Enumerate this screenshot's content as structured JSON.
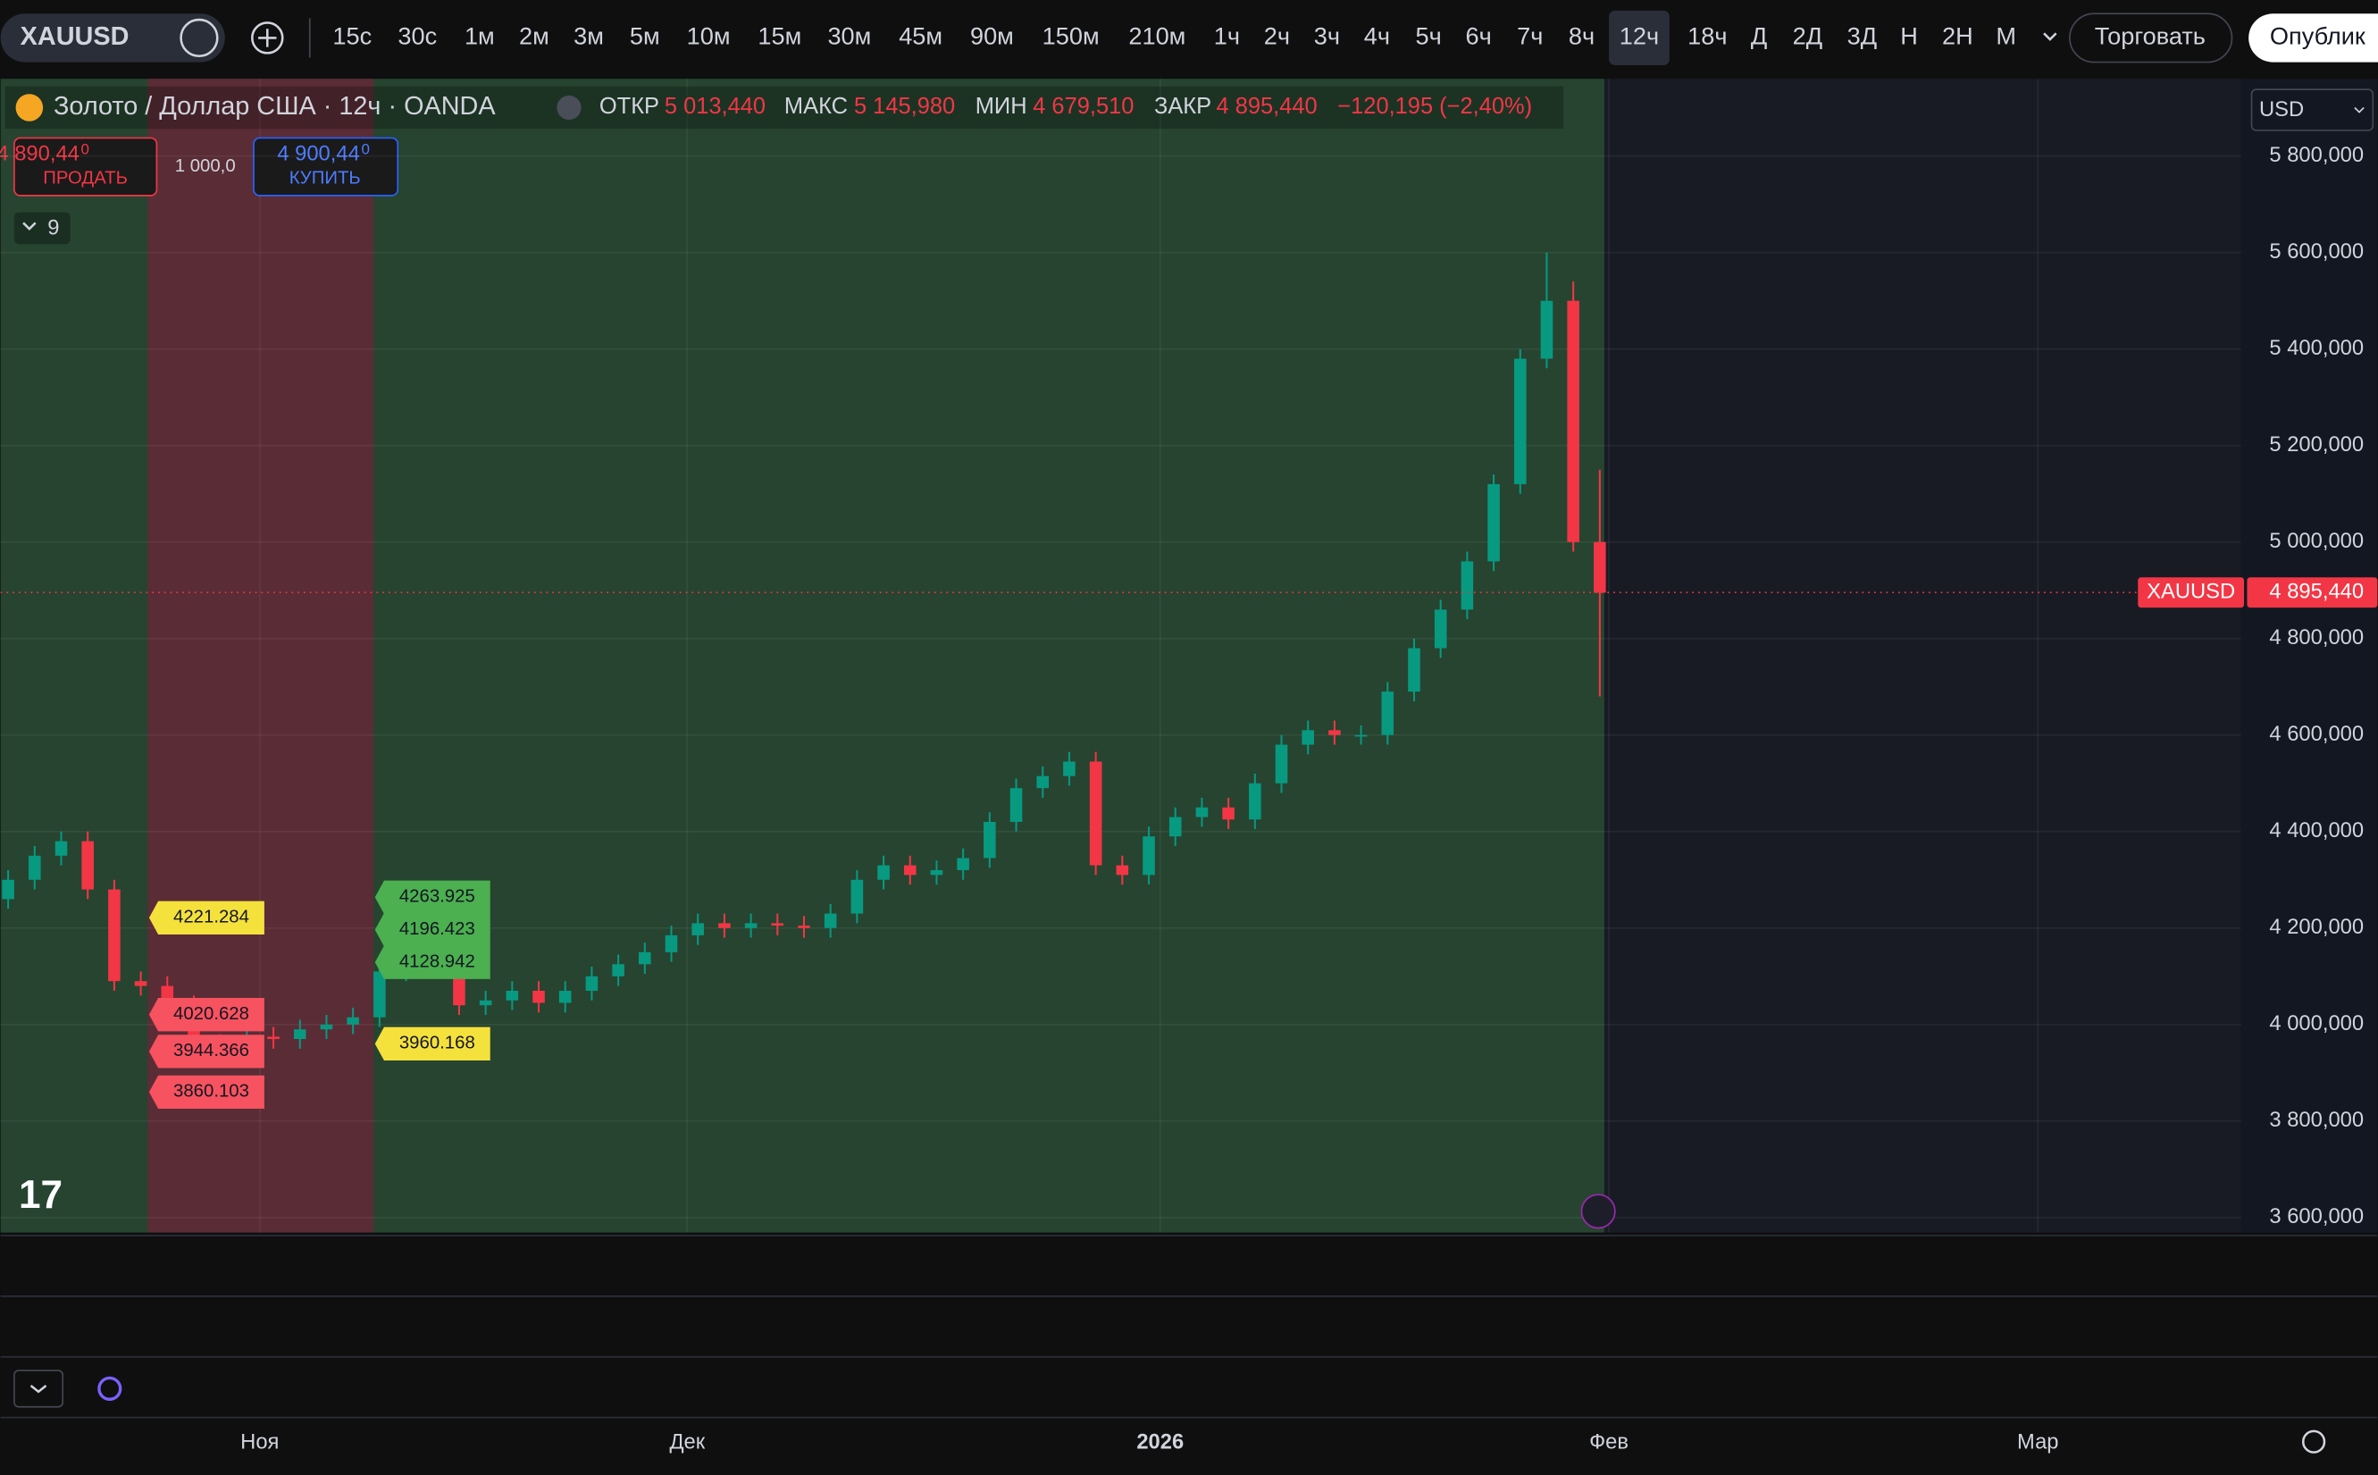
{
  "toolbar": {
    "symbol": "XAUUSD",
    "intervals": [
      "15с",
      "30с",
      "1м",
      "2м",
      "3м",
      "5м",
      "10м",
      "15м",
      "30м",
      "45м",
      "90м",
      "150м",
      "210м",
      "1ч",
      "2ч",
      "3ч",
      "4ч",
      "5ч",
      "6ч",
      "7ч",
      "8ч",
      "12ч",
      "18ч",
      "Д",
      "2Д",
      "3Д",
      "Н",
      "2Н",
      "М"
    ],
    "active_interval": "12ч",
    "trade_button": "Торговать",
    "publish_button": "Опублик"
  },
  "legend": {
    "title": "Золото / Доллар США · 12ч · OANDA",
    "open_label": "ОТКР",
    "open": "5 013,440",
    "high_label": "МАКС",
    "high": "5 145,980",
    "low_label": "МИН",
    "low": "4 679,510",
    "close_label": "ЗАКР",
    "close": "4 895,440",
    "change": "−120,195 (−2,40%)"
  },
  "trade": {
    "sell_price": "4 890,44",
    "sell_price_sup": "0",
    "sell_label": "ПРОДАТЬ",
    "quantity": "1 000,0",
    "buy_price": "4 900,44",
    "buy_price_sup": "0",
    "buy_label": "КУПИТЬ"
  },
  "indicators_count": "9",
  "currency": "USD",
  "chart_data": {
    "type": "candlestick",
    "open": [
      4260,
      4300,
      4350,
      4380,
      4280,
      4090,
      4080,
      4040,
      3960,
      3950,
      3975,
      3970,
      3990,
      4000,
      4015,
      4110,
      4140,
      4130,
      4040,
      4050,
      4070,
      4045,
      4070,
      4100,
      4125,
      4150,
      4185,
      4210,
      4200,
      4210,
      4205,
      4200,
      4230,
      4300,
      4330,
      4310,
      4320,
      4345,
      4420,
      4490,
      4515,
      4545,
      4330,
      4310,
      4390,
      4430,
      4450,
      4425,
      4500,
      4580,
      4610,
      4600,
      4600,
      4690,
      4780,
      4860,
      4960,
      5120,
      5380,
      5500,
      5000
    ],
    "high": [
      4320,
      4370,
      4400,
      4400,
      4300,
      4110,
      4100,
      4060,
      3980,
      3995,
      3995,
      4010,
      4020,
      4035,
      4130,
      4160,
      4160,
      4150,
      4070,
      4090,
      4090,
      4090,
      4120,
      4145,
      4170,
      4205,
      4230,
      4230,
      4230,
      4230,
      4225,
      4250,
      4320,
      4350,
      4350,
      4340,
      4365,
      4440,
      4510,
      4535,
      4565,
      4565,
      4350,
      4410,
      4450,
      4470,
      4470,
      4520,
      4600,
      4630,
      4630,
      4620,
      4710,
      4800,
      4880,
      4980,
      5140,
      5400,
      5600,
      5540,
      5150
    ],
    "low": [
      4240,
      4280,
      4330,
      4260,
      4070,
      4060,
      4020,
      3940,
      3930,
      3930,
      3950,
      3950,
      3970,
      3980,
      3995,
      4090,
      4110,
      4020,
      4020,
      4030,
      4025,
      4025,
      4050,
      4080,
      4105,
      4130,
      4165,
      4180,
      4180,
      4185,
      4180,
      4180,
      4210,
      4280,
      4290,
      4290,
      4300,
      4325,
      4400,
      4470,
      4495,
      4310,
      4290,
      4290,
      4370,
      4410,
      4405,
      4405,
      4480,
      4560,
      4580,
      4580,
      4580,
      4670,
      4760,
      4840,
      4940,
      5100,
      5360,
      4980,
      4680
    ],
    "close": [
      4300,
      4350,
      4380,
      4280,
      4090,
      4080,
      4040,
      3960,
      3950,
      3975,
      3970,
      3990,
      4000,
      4015,
      4110,
      4140,
      4130,
      4040,
      4050,
      4070,
      4045,
      4070,
      4100,
      4125,
      4150,
      4185,
      4210,
      4200,
      4210,
      4205,
      4200,
      4230,
      4300,
      4330,
      4310,
      4320,
      4345,
      4420,
      4490,
      4515,
      4545,
      4330,
      4310,
      4390,
      4430,
      4450,
      4425,
      4500,
      4580,
      4610,
      4600,
      4600,
      4690,
      4780,
      4860,
      4960,
      5120,
      5380,
      5500,
      5000,
      4895
    ],
    "up_color": "#089981",
    "down_color": "#f23645",
    "ylim": [
      3569,
      5960
    ],
    "yticks": [
      {
        "value": 3600,
        "label": "3 600,000"
      },
      {
        "value": 3800,
        "label": "3 800,000"
      },
      {
        "value": 4000,
        "label": "4 000,000"
      },
      {
        "value": 4200,
        "label": "4 200,000"
      },
      {
        "value": 4400,
        "label": "4 400,000"
      },
      {
        "value": 4600,
        "label": "4 600,000"
      },
      {
        "value": 4800,
        "label": "4 800,000"
      },
      {
        "value": 5000,
        "label": "5 000,000"
      },
      {
        "value": 5200,
        "label": "5 200,000"
      },
      {
        "value": 5400,
        "label": "5 400,000"
      },
      {
        "value": 5600,
        "label": "5 600,000"
      },
      {
        "value": 5800,
        "label": "5 800,000"
      }
    ],
    "x_axis_labels": [
      "Ноя",
      "Дек",
      "2026",
      "Фев",
      "Мар"
    ],
    "last_price": {
      "symbol": "XAUUSD",
      "value": 4895.44,
      "label": "4 895,440",
      "color": "#f23645"
    },
    "left_levels": [
      {
        "value": 4221.284,
        "color": "#f5e13c"
      },
      {
        "value": 4020.628,
        "color": "#f7525f"
      },
      {
        "value": 3944.366,
        "color": "#f7525f"
      },
      {
        "value": 3860.103,
        "color": "#f7525f"
      }
    ],
    "right_levels": [
      {
        "value": 4263.925,
        "color": "#4caf50"
      },
      {
        "value": 4196.423,
        "color": "#4caf50"
      },
      {
        "value": 4128.942,
        "color": "#4caf50"
      },
      {
        "value": 3960.168,
        "color": "#f5e13c"
      }
    ]
  }
}
